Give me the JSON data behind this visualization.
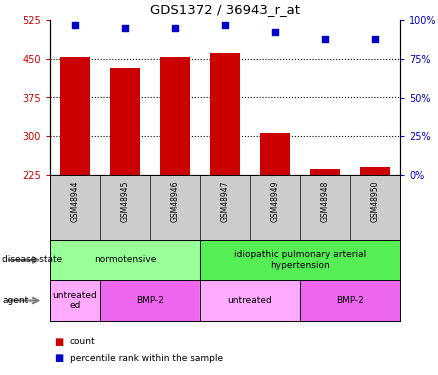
{
  "title": "GDS1372 / 36943_r_at",
  "samples": [
    "GSM48944",
    "GSM48945",
    "GSM48946",
    "GSM48947",
    "GSM48949",
    "GSM48948",
    "GSM48950"
  ],
  "counts": [
    453,
    432,
    453,
    462,
    307,
    237,
    240
  ],
  "percentiles": [
    97,
    95,
    95,
    97,
    92,
    88,
    88
  ],
  "ylim_left": [
    225,
    525
  ],
  "ylim_right": [
    0,
    100
  ],
  "yticks_left": [
    225,
    300,
    375,
    450,
    525
  ],
  "yticks_right": [
    0,
    25,
    50,
    75,
    100
  ],
  "bar_color": "#cc0000",
  "dot_color": "#0000cc",
  "disease_state": [
    {
      "label": "normotensive",
      "start": 0,
      "end": 3,
      "color": "#99ff99"
    },
    {
      "label": "idiopathic pulmonary arterial\nhypertension",
      "start": 3,
      "end": 7,
      "color": "#55ee55"
    }
  ],
  "agent": [
    {
      "label": "untreated\ned",
      "start": 0,
      "end": 1,
      "color": "#ffaaff"
    },
    {
      "label": "BMP-2",
      "start": 1,
      "end": 3,
      "color": "#ee66ee"
    },
    {
      "label": "untreated",
      "start": 3,
      "end": 5,
      "color": "#ffaaff"
    },
    {
      "label": "BMP-2",
      "start": 5,
      "end": 7,
      "color": "#ee66ee"
    }
  ],
  "left_label_color": "#cc0000",
  "right_label_color": "#0000cc",
  "background_color": "#ffffff",
  "sample_bg": "#cccccc",
  "grid_yticks": [
    300,
    375,
    450
  ],
  "left_labels_outside": [
    "disease state",
    "agent"
  ],
  "legend_items": [
    {
      "color": "#cc0000",
      "label": "count"
    },
    {
      "color": "#0000cc",
      "label": "percentile rank within the sample"
    }
  ]
}
